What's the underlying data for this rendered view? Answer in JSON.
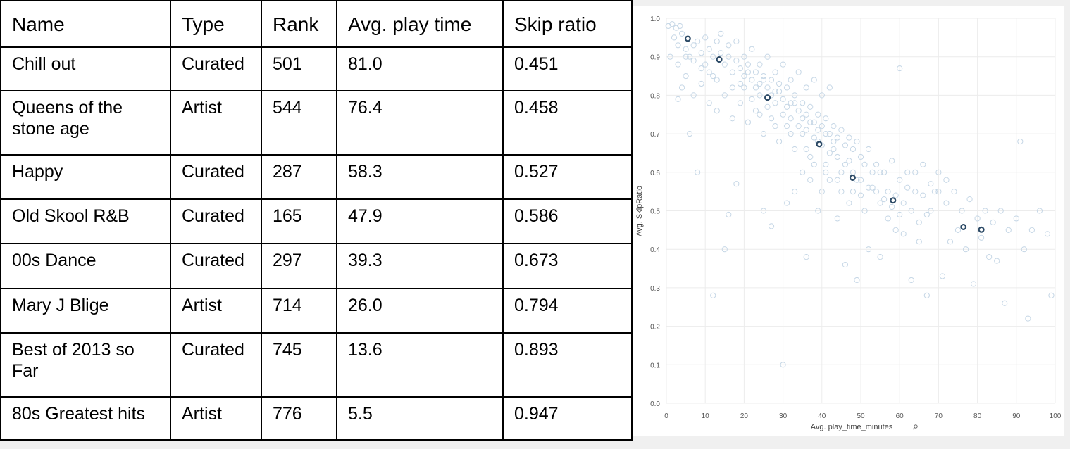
{
  "table": {
    "headers": [
      "Name",
      "Type",
      "Rank",
      "Avg. play time",
      "Skip ratio"
    ],
    "rows": [
      [
        "Chill out",
        "Curated",
        "501",
        "81.0",
        "0.451"
      ],
      [
        "Queens of the stone age",
        "Artist",
        "544",
        "76.4",
        "0.458"
      ],
      [
        "Happy",
        "Curated",
        "287",
        "58.3",
        "0.527"
      ],
      [
        "Old Skool R&B",
        "Curated",
        "165",
        "47.9",
        "0.586"
      ],
      [
        "00s Dance",
        "Curated",
        "297",
        "39.3",
        "0.673"
      ],
      [
        "Mary J Blige",
        "Artist",
        "714",
        "26.0",
        "0.794"
      ],
      [
        "Best of 2013 so Far",
        "Curated",
        "745",
        "13.6",
        "0.893"
      ],
      [
        "80s Greatest hits",
        "Artist",
        "776",
        "5.5",
        "0.947"
      ]
    ]
  },
  "chart_data": {
    "type": "scatter",
    "xlabel": "Avg. play_time_minutes",
    "ylabel": "Avg. SkipRatio",
    "xlim": [
      0,
      100
    ],
    "ylim": [
      0,
      1
    ],
    "xticks": [
      0,
      10,
      20,
      30,
      40,
      50,
      60,
      70,
      80,
      90,
      100
    ],
    "yticks": [
      "0.0",
      "0.1",
      "0.2",
      "0.3",
      "0.4",
      "0.5",
      "0.6",
      "0.7",
      "0.8",
      "0.9",
      "1.0"
    ],
    "grid": true,
    "colors": {
      "background_points": "#c6d7e6",
      "highlight_points": "#2c4a66",
      "grid": "#ececec"
    },
    "highlighted": [
      {
        "x": 81.0,
        "y": 0.451
      },
      {
        "x": 76.4,
        "y": 0.458
      },
      {
        "x": 58.3,
        "y": 0.527
      },
      {
        "x": 47.9,
        "y": 0.586
      },
      {
        "x": 39.3,
        "y": 0.673
      },
      {
        "x": 26.0,
        "y": 0.794
      },
      {
        "x": 13.6,
        "y": 0.893
      },
      {
        "x": 5.5,
        "y": 0.947
      }
    ],
    "background_points": [
      [
        0.5,
        0.98
      ],
      [
        1.5,
        0.985
      ],
      [
        2.5,
        0.975
      ],
      [
        3.5,
        0.98
      ],
      [
        2.0,
        0.95
      ],
      [
        3.0,
        0.93
      ],
      [
        4.0,
        0.96
      ],
      [
        5.0,
        0.92
      ],
      [
        6.0,
        0.9
      ],
      [
        7.0,
        0.93
      ],
      [
        8.0,
        0.94
      ],
      [
        9.0,
        0.91
      ],
      [
        10.0,
        0.95
      ],
      [
        11.0,
        0.92
      ],
      [
        12.0,
        0.9
      ],
      [
        13.0,
        0.94
      ],
      [
        14.0,
        0.91
      ],
      [
        15.0,
        0.88
      ],
      [
        16.0,
        0.9
      ],
      [
        17.0,
        0.86
      ],
      [
        18.0,
        0.89
      ],
      [
        19.0,
        0.87
      ],
      [
        20.0,
        0.85
      ],
      [
        21.0,
        0.88
      ],
      [
        22.0,
        0.84
      ],
      [
        23.0,
        0.86
      ],
      [
        24.0,
        0.83
      ],
      [
        25.0,
        0.85
      ],
      [
        26.0,
        0.82
      ],
      [
        27.0,
        0.84
      ],
      [
        28.0,
        0.81
      ],
      [
        29.0,
        0.83
      ],
      [
        30.0,
        0.79
      ],
      [
        31.0,
        0.82
      ],
      [
        32.0,
        0.78
      ],
      [
        33.0,
        0.8
      ],
      [
        34.0,
        0.76
      ],
      [
        35.0,
        0.78
      ],
      [
        36.0,
        0.75
      ],
      [
        37.0,
        0.77
      ],
      [
        38.0,
        0.73
      ],
      [
        39.0,
        0.75
      ],
      [
        40.0,
        0.72
      ],
      [
        41.0,
        0.74
      ],
      [
        42.0,
        0.7
      ],
      [
        43.0,
        0.72
      ],
      [
        44.0,
        0.69
      ],
      [
        45.0,
        0.71
      ],
      [
        46.0,
        0.67
      ],
      [
        47.0,
        0.69
      ],
      [
        48.0,
        0.66
      ],
      [
        49.0,
        0.68
      ],
      [
        50.0,
        0.64
      ],
      [
        52.0,
        0.66
      ],
      [
        54.0,
        0.62
      ],
      [
        56.0,
        0.6
      ],
      [
        58.0,
        0.63
      ],
      [
        60.0,
        0.58
      ],
      [
        62.0,
        0.56
      ],
      [
        64.0,
        0.6
      ],
      [
        66.0,
        0.54
      ],
      [
        68.0,
        0.57
      ],
      [
        70.0,
        0.55
      ],
      [
        72.0,
        0.52
      ],
      [
        74.0,
        0.55
      ],
      [
        76.0,
        0.5
      ],
      [
        78.0,
        0.53
      ],
      [
        80.0,
        0.48
      ],
      [
        82.0,
        0.5
      ],
      [
        84.0,
        0.47
      ],
      [
        86.0,
        0.5
      ],
      [
        88.0,
        0.45
      ],
      [
        90.0,
        0.48
      ],
      [
        92.0,
        0.4
      ],
      [
        94.0,
        0.45
      ],
      [
        96.0,
        0.5
      ],
      [
        98.0,
        0.44
      ],
      [
        99.0,
        0.28
      ],
      [
        93.0,
        0.22
      ],
      [
        91.0,
        0.68
      ],
      [
        87.0,
        0.26
      ],
      [
        85.0,
        0.37
      ],
      [
        79.0,
        0.31
      ],
      [
        75.0,
        0.45
      ],
      [
        71.0,
        0.33
      ],
      [
        67.0,
        0.28
      ],
      [
        63.0,
        0.32
      ],
      [
        60.0,
        0.87
      ],
      [
        55.0,
        0.38
      ],
      [
        52.0,
        0.4
      ],
      [
        49.0,
        0.32
      ],
      [
        46.0,
        0.36
      ],
      [
        44.0,
        0.48
      ],
      [
        40.0,
        0.55
      ],
      [
        36.0,
        0.38
      ],
      [
        30.0,
        0.1
      ],
      [
        12.0,
        0.28
      ],
      [
        15.0,
        0.4
      ],
      [
        16.0,
        0.49
      ],
      [
        18.0,
        0.57
      ],
      [
        8.0,
        0.6
      ],
      [
        6.0,
        0.7
      ],
      [
        4.0,
        0.82
      ],
      [
        3.0,
        0.79
      ],
      [
        5.0,
        0.85
      ],
      [
        7.0,
        0.8
      ],
      [
        9.0,
        0.83
      ],
      [
        11.0,
        0.78
      ],
      [
        13.0,
        0.76
      ],
      [
        15.0,
        0.8
      ],
      [
        17.0,
        0.74
      ],
      [
        19.0,
        0.78
      ],
      [
        21.0,
        0.73
      ],
      [
        23.0,
        0.76
      ],
      [
        25.0,
        0.7
      ],
      [
        27.0,
        0.74
      ],
      [
        29.0,
        0.68
      ],
      [
        31.0,
        0.72
      ],
      [
        33.0,
        0.66
      ],
      [
        35.0,
        0.7
      ],
      [
        37.0,
        0.64
      ],
      [
        39.0,
        0.68
      ],
      [
        41.0,
        0.62
      ],
      [
        43.0,
        0.66
      ],
      [
        45.0,
        0.6
      ],
      [
        47.0,
        0.63
      ],
      [
        49.0,
        0.58
      ],
      [
        51.0,
        0.62
      ],
      [
        53.0,
        0.56
      ],
      [
        55.0,
        0.6
      ],
      [
        57.0,
        0.55
      ],
      [
        59.0,
        0.54
      ],
      [
        61.0,
        0.52
      ],
      [
        63.0,
        0.5
      ],
      [
        65.0,
        0.47
      ],
      [
        67.0,
        0.49
      ],
      [
        69.0,
        0.55
      ],
      [
        73.0,
        0.42
      ],
      [
        77.0,
        0.4
      ],
      [
        81.0,
        0.43
      ],
      [
        83.0,
        0.38
      ],
      [
        22.0,
        0.92
      ],
      [
        24.0,
        0.88
      ],
      [
        26.0,
        0.9
      ],
      [
        28.0,
        0.86
      ],
      [
        30.0,
        0.88
      ],
      [
        32.0,
        0.84
      ],
      [
        34.0,
        0.86
      ],
      [
        36.0,
        0.82
      ],
      [
        38.0,
        0.84
      ],
      [
        40.0,
        0.8
      ],
      [
        42.0,
        0.82
      ],
      [
        18.0,
        0.94
      ],
      [
        20.0,
        0.9
      ],
      [
        14.0,
        0.96
      ],
      [
        16.0,
        0.93
      ],
      [
        10.0,
        0.88
      ],
      [
        12.0,
        0.85
      ],
      [
        20.0,
        0.82
      ],
      [
        22.0,
        0.79
      ],
      [
        24.0,
        0.8
      ],
      [
        26.0,
        0.77
      ],
      [
        28.0,
        0.78
      ],
      [
        30.0,
        0.75
      ],
      [
        32.0,
        0.74
      ],
      [
        34.0,
        0.72
      ],
      [
        36.0,
        0.71
      ],
      [
        38.0,
        0.69
      ],
      [
        40.0,
        0.67
      ],
      [
        42.0,
        0.65
      ],
      [
        44.0,
        0.64
      ],
      [
        46.0,
        0.62
      ],
      [
        48.0,
        0.6
      ],
      [
        50.0,
        0.58
      ],
      [
        52.0,
        0.56
      ],
      [
        54.0,
        0.55
      ],
      [
        56.0,
        0.53
      ],
      [
        58.0,
        0.51
      ],
      [
        60.0,
        0.49
      ],
      [
        62.0,
        0.6
      ],
      [
        64.0,
        0.55
      ],
      [
        66.0,
        0.62
      ],
      [
        68.0,
        0.5
      ],
      [
        70.0,
        0.6
      ],
      [
        27.0,
        0.46
      ],
      [
        25.0,
        0.5
      ],
      [
        31.0,
        0.52
      ],
      [
        33.0,
        0.55
      ],
      [
        35.0,
        0.6
      ],
      [
        37.0,
        0.58
      ],
      [
        39.0,
        0.5
      ],
      [
        42.0,
        0.58
      ],
      [
        45.0,
        0.55
      ],
      [
        47.0,
        0.52
      ],
      [
        50.0,
        0.54
      ],
      [
        53.0,
        0.6
      ],
      [
        57.0,
        0.48
      ],
      [
        61.0,
        0.44
      ],
      [
        65.0,
        0.42
      ],
      [
        72.0,
        0.58
      ],
      [
        19.0,
        0.83
      ],
      [
        21.0,
        0.86
      ],
      [
        23.0,
        0.82
      ],
      [
        25.0,
        0.84
      ],
      [
        27.0,
        0.8
      ],
      [
        29.0,
        0.81
      ],
      [
        31.0,
        0.77
      ],
      [
        33.0,
        0.78
      ],
      [
        35.0,
        0.74
      ],
      [
        37.0,
        0.73
      ],
      [
        39.0,
        0.71
      ],
      [
        41.0,
        0.7
      ],
      [
        43.0,
        0.68
      ],
      [
        17.0,
        0.82
      ],
      [
        13.0,
        0.84
      ],
      [
        11.0,
        0.86
      ],
      [
        9.0,
        0.87
      ],
      [
        7.0,
        0.89
      ],
      [
        5.0,
        0.9
      ],
      [
        3.0,
        0.88
      ],
      [
        1.0,
        0.9
      ],
      [
        24.0,
        0.75
      ],
      [
        28.0,
        0.72
      ],
      [
        32.0,
        0.7
      ],
      [
        36.0,
        0.66
      ],
      [
        38.0,
        0.62
      ],
      [
        41.0,
        0.6
      ],
      [
        44.0,
        0.58
      ],
      [
        48.0,
        0.55
      ],
      [
        51.0,
        0.5
      ],
      [
        55.0,
        0.52
      ],
      [
        59.0,
        0.45
      ]
    ]
  }
}
